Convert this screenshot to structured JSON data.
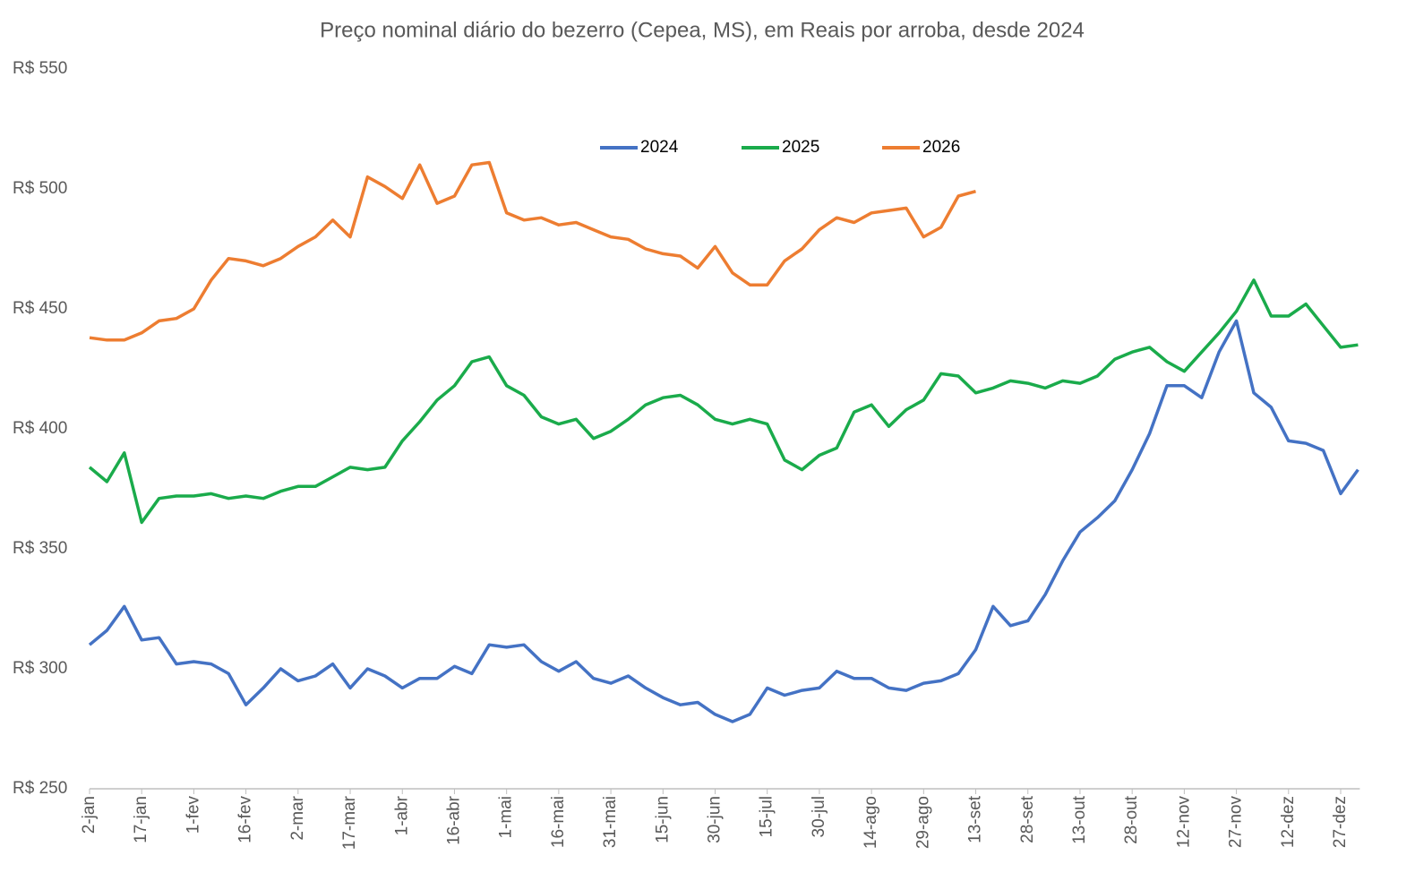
{
  "chart_data": {
    "type": "line",
    "title": "Preço nominal diário do bezerro (Cepea, MS), em Reais por arroba, desde 2024",
    "categories": [
      "2-jan",
      null,
      null,
      "17-jan",
      null,
      null,
      "1-fev",
      null,
      null,
      "16-fev",
      null,
      null,
      "2-mar",
      null,
      null,
      "17-mar",
      null,
      null,
      "1-abr",
      null,
      null,
      "16-abr",
      null,
      null,
      "1-mai",
      null,
      null,
      "16-mai",
      null,
      null,
      "31-mai",
      null,
      null,
      "15-jun",
      null,
      null,
      "30-jun",
      null,
      null,
      "15-jul",
      null,
      null,
      "30-jul",
      null,
      null,
      "14-ago",
      null,
      null,
      "29-ago",
      null,
      null,
      "13-set",
      null,
      null,
      "28-set",
      null,
      null,
      "13-out",
      null,
      null,
      "28-out",
      null,
      null,
      "12-nov",
      null,
      null,
      "27-nov",
      null,
      null,
      "12-dez",
      null,
      null,
      "27-dez",
      null
    ],
    "series": [
      {
        "name": "2024",
        "color": "#4472c4",
        "values": [
          310,
          316,
          326,
          312,
          313,
          302,
          303,
          302,
          298,
          285,
          292,
          300,
          295,
          297,
          302,
          292,
          300,
          297,
          292,
          296,
          296,
          301,
          298,
          310,
          309,
          310,
          303,
          299,
          303,
          296,
          294,
          297,
          292,
          288,
          285,
          286,
          281,
          278,
          281,
          292,
          289,
          291,
          292,
          299,
          296,
          296,
          292,
          291,
          294,
          295,
          298,
          308,
          326,
          318,
          320,
          331,
          345,
          357,
          363,
          370,
          383,
          398,
          418,
          418,
          413,
          432,
          445,
          415,
          409,
          395,
          394,
          391,
          373,
          383
        ]
      },
      {
        "name": "2025",
        "color": "#1aab4b",
        "values": [
          384,
          378,
          390,
          361,
          371,
          372,
          372,
          373,
          371,
          372,
          371,
          374,
          376,
          376,
          380,
          384,
          383,
          384,
          395,
          403,
          412,
          418,
          428,
          430,
          418,
          414,
          405,
          402,
          404,
          396,
          399,
          404,
          410,
          413,
          414,
          410,
          404,
          402,
          404,
          402,
          387,
          383,
          389,
          392,
          407,
          410,
          401,
          408,
          412,
          423,
          422,
          415,
          417,
          420,
          419,
          417,
          420,
          419,
          422,
          429,
          432,
          434,
          428,
          424,
          432,
          440,
          449,
          462,
          447,
          447,
          452,
          443,
          434,
          435
        ]
      },
      {
        "name": "2026",
        "color": "#ed7d31",
        "values": [
          438,
          437,
          437,
          440,
          445,
          446,
          450,
          462,
          471,
          470,
          468,
          471,
          476,
          480,
          487,
          480,
          505,
          501,
          496,
          510,
          494,
          497,
          510,
          511,
          490,
          487,
          488,
          485,
          486,
          483,
          480,
          479,
          475,
          473,
          472,
          467,
          476,
          465,
          460,
          460,
          470,
          475,
          483,
          488,
          486,
          490,
          491,
          492,
          480,
          484,
          497,
          499,
          null,
          null,
          null,
          null,
          null,
          null,
          null,
          null,
          null,
          null,
          null,
          null,
          null,
          null,
          null,
          null,
          null,
          null,
          null,
          null,
          null,
          null
        ]
      }
    ],
    "ylim": [
      250,
      550
    ],
    "yticks": [
      {
        "value": 250,
        "label": "R$ 250"
      },
      {
        "value": 300,
        "label": "R$ 300"
      },
      {
        "value": 350,
        "label": "R$ 350"
      },
      {
        "value": 400,
        "label": "R$ 400"
      },
      {
        "value": 450,
        "label": "R$ 450"
      },
      {
        "value": 500,
        "label": "R$ 500"
      },
      {
        "value": 550,
        "label": "R$ 550"
      }
    ],
    "grid": false,
    "legend": "top"
  }
}
